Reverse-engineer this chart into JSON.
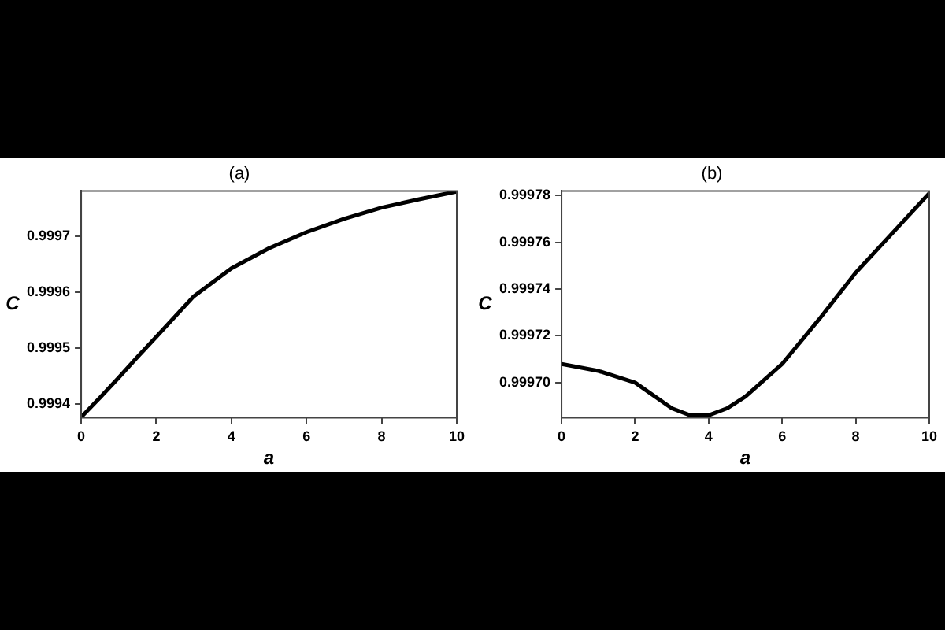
{
  "chart_data": [
    {
      "type": "line",
      "title": "(a)",
      "xlabel": "a",
      "ylabel": "C",
      "color": "#000000",
      "marker": "none",
      "x": [
        0,
        0.5,
        1,
        1.5,
        2,
        3,
        4,
        5,
        6,
        7,
        8,
        9,
        10
      ],
      "values": [
        0.999376,
        0.999411,
        0.999447,
        0.999484,
        0.99952,
        0.999593,
        0.999643,
        0.999679,
        0.999708,
        0.999732,
        0.999752,
        0.999767,
        0.999781
      ],
      "xlim": [
        0,
        10
      ],
      "xticks": [
        0,
        2,
        4,
        6,
        8,
        10
      ],
      "ylim": [
        0.999375,
        0.999782
      ],
      "yticks": [
        0.9994,
        0.9995,
        0.9996,
        0.9997
      ]
    },
    {
      "type": "line",
      "title": "(b)",
      "xlabel": "a",
      "ylabel": "C",
      "color": "#000000",
      "marker": "none",
      "x": [
        0,
        1,
        2,
        3,
        3.5,
        4,
        4.5,
        5,
        6,
        7,
        8,
        9,
        10
      ],
      "values": [
        0.999708,
        0.999705,
        0.9997,
        0.999689,
        0.999686,
        0.999686,
        0.999689,
        0.999694,
        0.999708,
        0.999727,
        0.999747,
        0.999764,
        0.999781
      ],
      "xlim": [
        0,
        10
      ],
      "xticks": [
        0,
        2,
        4,
        6,
        8,
        10
      ],
      "ylim": [
        0.999685,
        0.999782
      ],
      "yticks": [
        {
          "value": 0.9997,
          "label": "0.99970"
        },
        {
          "value": 0.99972,
          "label": "0.99972"
        },
        {
          "value": 0.99974,
          "label": "0.99974"
        },
        {
          "value": 0.99976,
          "label": "0.99976"
        },
        {
          "value": 0.99978,
          "label": "0.99978"
        }
      ]
    }
  ]
}
